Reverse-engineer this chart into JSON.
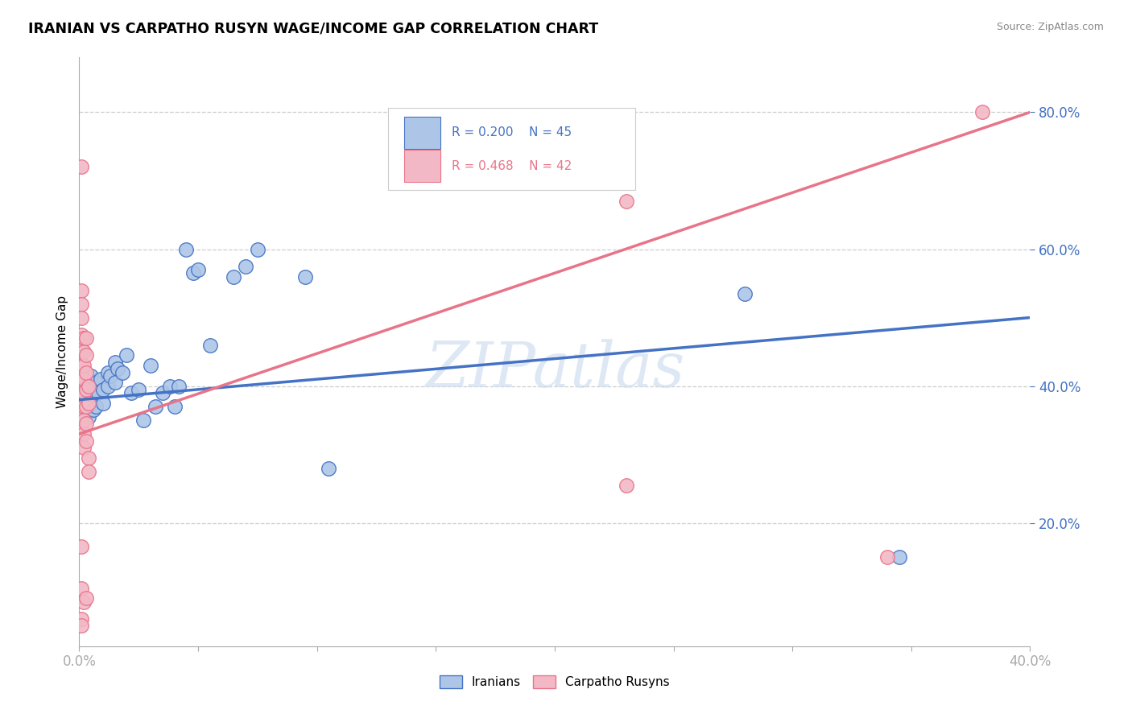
{
  "title": "IRANIAN VS CARPATHO RUSYN WAGE/INCOME GAP CORRELATION CHART",
  "source_text": "Source: ZipAtlas.com",
  "ylabel": "Wage/Income Gap",
  "xlim": [
    0.0,
    0.4
  ],
  "ylim": [
    0.02,
    0.88
  ],
  "ytick_vals": [
    0.2,
    0.4,
    0.6,
    0.8
  ],
  "ytick_labels": [
    "20.0%",
    "40.0%",
    "60.0%",
    "80.0%"
  ],
  "xtick_vals": [
    0.0,
    0.05,
    0.1,
    0.15,
    0.2,
    0.25,
    0.3,
    0.35,
    0.4
  ],
  "xtick_labels": [
    "0.0%",
    "",
    "",
    "",
    "",
    "",
    "",
    "",
    "40.0%"
  ],
  "watermark": "ZIPatlas",
  "iranians_scatter": [
    [
      0.001,
      0.385
    ],
    [
      0.002,
      0.37
    ],
    [
      0.002,
      0.4
    ],
    [
      0.003,
      0.38
    ],
    [
      0.003,
      0.36
    ],
    [
      0.004,
      0.375
    ],
    [
      0.004,
      0.355
    ],
    [
      0.005,
      0.395
    ],
    [
      0.005,
      0.415
    ],
    [
      0.006,
      0.385
    ],
    [
      0.006,
      0.365
    ],
    [
      0.007,
      0.405
    ],
    [
      0.007,
      0.37
    ],
    [
      0.008,
      0.39
    ],
    [
      0.009,
      0.41
    ],
    [
      0.01,
      0.395
    ],
    [
      0.01,
      0.375
    ],
    [
      0.012,
      0.42
    ],
    [
      0.012,
      0.4
    ],
    [
      0.013,
      0.415
    ],
    [
      0.015,
      0.435
    ],
    [
      0.015,
      0.405
    ],
    [
      0.016,
      0.425
    ],
    [
      0.018,
      0.42
    ],
    [
      0.02,
      0.445
    ],
    [
      0.022,
      0.39
    ],
    [
      0.025,
      0.395
    ],
    [
      0.027,
      0.35
    ],
    [
      0.03,
      0.43
    ],
    [
      0.032,
      0.37
    ],
    [
      0.035,
      0.39
    ],
    [
      0.038,
      0.4
    ],
    [
      0.04,
      0.37
    ],
    [
      0.042,
      0.4
    ],
    [
      0.045,
      0.6
    ],
    [
      0.048,
      0.565
    ],
    [
      0.05,
      0.57
    ],
    [
      0.055,
      0.46
    ],
    [
      0.065,
      0.56
    ],
    [
      0.07,
      0.575
    ],
    [
      0.075,
      0.6
    ],
    [
      0.095,
      0.56
    ],
    [
      0.105,
      0.28
    ],
    [
      0.28,
      0.535
    ],
    [
      0.345,
      0.15
    ]
  ],
  "rusyns_scatter": [
    [
      0.001,
      0.72
    ],
    [
      0.001,
      0.54
    ],
    [
      0.001,
      0.52
    ],
    [
      0.001,
      0.5
    ],
    [
      0.001,
      0.475
    ],
    [
      0.001,
      0.455
    ],
    [
      0.001,
      0.43
    ],
    [
      0.001,
      0.415
    ],
    [
      0.001,
      0.39
    ],
    [
      0.001,
      0.375
    ],
    [
      0.001,
      0.355
    ],
    [
      0.001,
      0.34
    ],
    [
      0.002,
      0.47
    ],
    [
      0.002,
      0.45
    ],
    [
      0.002,
      0.43
    ],
    [
      0.002,
      0.41
    ],
    [
      0.002,
      0.39
    ],
    [
      0.002,
      0.37
    ],
    [
      0.002,
      0.35
    ],
    [
      0.002,
      0.33
    ],
    [
      0.002,
      0.31
    ],
    [
      0.003,
      0.47
    ],
    [
      0.003,
      0.445
    ],
    [
      0.003,
      0.42
    ],
    [
      0.003,
      0.395
    ],
    [
      0.003,
      0.37
    ],
    [
      0.003,
      0.345
    ],
    [
      0.003,
      0.32
    ],
    [
      0.004,
      0.4
    ],
    [
      0.004,
      0.375
    ],
    [
      0.004,
      0.295
    ],
    [
      0.004,
      0.275
    ],
    [
      0.001,
      0.165
    ],
    [
      0.001,
      0.105
    ],
    [
      0.002,
      0.085
    ],
    [
      0.003,
      0.09
    ],
    [
      0.001,
      0.06
    ],
    [
      0.001,
      0.05
    ],
    [
      0.23,
      0.67
    ],
    [
      0.23,
      0.255
    ],
    [
      0.34,
      0.15
    ],
    [
      0.38,
      0.8
    ]
  ],
  "iranian_line_color": "#4472c4",
  "rusyn_line_color": "#e8748a",
  "iranian_dot_color": "#adc6e8",
  "rusyn_dot_color": "#f2b8c6",
  "background_color": "#ffffff",
  "grid_color": "#cccccc",
  "iranian_R": 0.2,
  "rusyn_R": 0.468,
  "iranian_N": 45,
  "rusyn_N": 42,
  "iranian_line_endpoints": [
    [
      0.0,
      0.38
    ],
    [
      0.4,
      0.5
    ]
  ],
  "rusyn_line_endpoints": [
    [
      0.0,
      0.33
    ],
    [
      0.4,
      0.8
    ]
  ]
}
